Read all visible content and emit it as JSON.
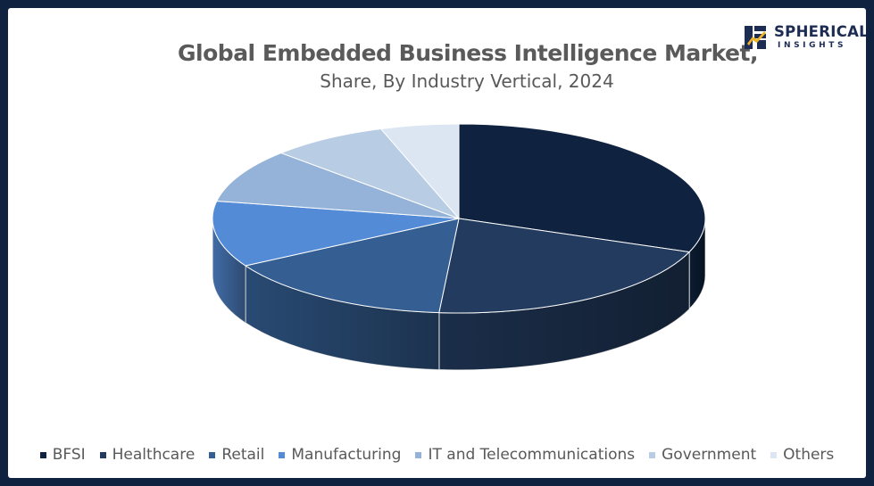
{
  "title": "Global Embedded Business Intelligence Market,",
  "subtitle": "Share, By Industry Vertical, 2024",
  "logo": {
    "line1": "SPHERICAL",
    "line2": "INSIGHTS"
  },
  "chart_data": {
    "type": "pie",
    "style": "3d",
    "title": "Global Embedded Business Intelligence Market,",
    "subtitle": "Share, By Industry Vertical, 2024",
    "legend_position": "bottom",
    "categories": [
      "BFSI",
      "Healthcare",
      "Retail",
      "Manufacturing",
      "IT and Telecommunications",
      "Government",
      "Others"
    ],
    "values": [
      30,
      20,
      15,
      11,
      9,
      7.5,
      5
    ],
    "colors": [
      "#0f2340",
      "#223b5e",
      "#355f93",
      "#548bd6",
      "#95b3d8",
      "#b8cce4",
      "#dce6f2"
    ]
  }
}
